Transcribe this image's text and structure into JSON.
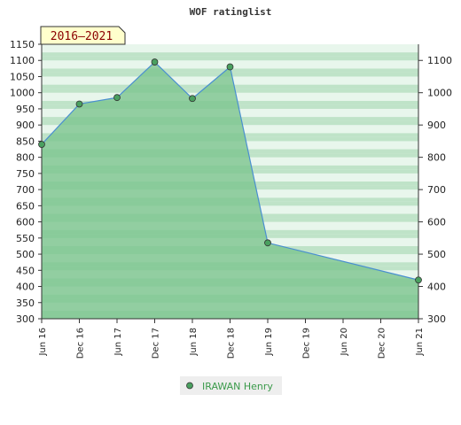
{
  "chart_data": {
    "type": "area",
    "title": "WOF ratinglist",
    "period_badge": "2016–2021",
    "categories": [
      "Jun 16",
      "Dec 16",
      "Jun 17",
      "Dec 17",
      "Jun 18",
      "Dec 18",
      "Jun 19",
      "Dec 19",
      "Jun 20",
      "Dec 20",
      "Jun 21"
    ],
    "series": [
      {
        "name": "IRAWAN Henry",
        "points": [
          {
            "x": "Jun 16",
            "y": 840
          },
          {
            "x": "Dec 16",
            "y": 965
          },
          {
            "x": "Jun 17",
            "y": 985
          },
          {
            "x": "Dec 17",
            "y": 1095
          },
          {
            "x": "Jun 18",
            "y": 982
          },
          {
            "x": "Dec 18",
            "y": 1080
          },
          {
            "x": "Jun 19",
            "y": 535
          },
          {
            "x": "Jun 21",
            "y": 420
          }
        ]
      }
    ],
    "ylim": [
      300,
      1150
    ],
    "left_yticks": [
      300,
      350,
      400,
      450,
      500,
      550,
      600,
      650,
      700,
      750,
      800,
      850,
      900,
      950,
      1000,
      1050,
      1100,
      1150
    ],
    "right_yticks": [
      300,
      400,
      500,
      600,
      700,
      800,
      900,
      1000,
      1100
    ],
    "grid": "horizontal bands",
    "legend_position": "bottom-center",
    "colors": {
      "fill": "#7cc48f",
      "line": "#4a8fd0",
      "marker": "#4aa060",
      "band_dark": "#bfe3c8",
      "band_light": "#e8f6ec",
      "badge_bg": "#ffffcc",
      "badge_text": "#8b0000",
      "legend_text": "#3a9a4a"
    }
  }
}
